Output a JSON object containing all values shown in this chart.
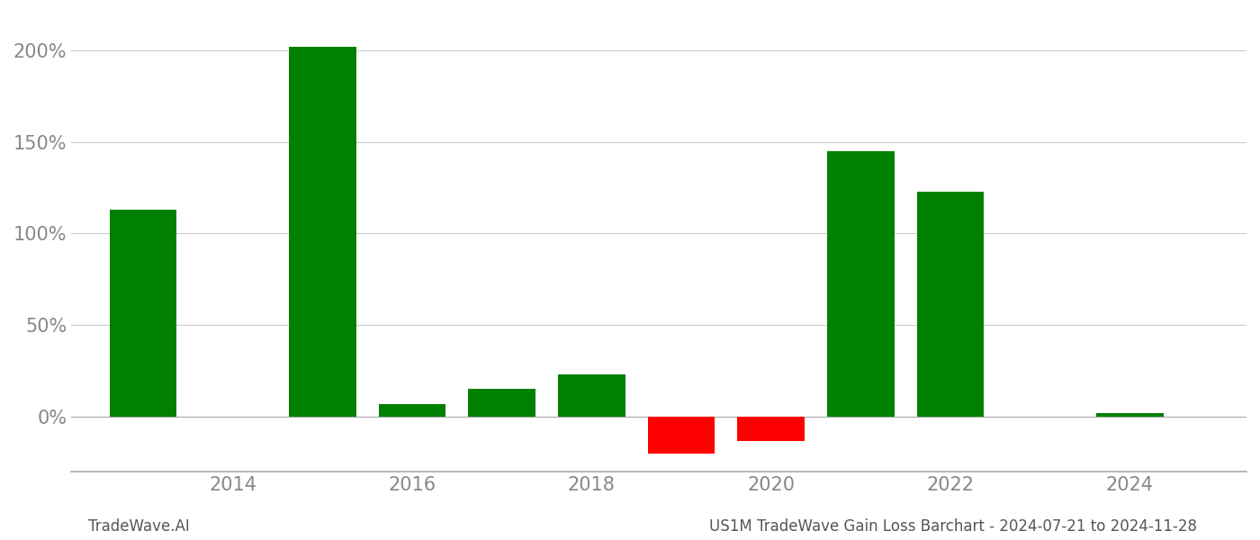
{
  "years": [
    2013,
    2015,
    2016,
    2017,
    2018,
    2019,
    2020,
    2021,
    2022,
    2024
  ],
  "values": [
    1.13,
    2.02,
    0.07,
    0.15,
    0.23,
    -0.2,
    -0.13,
    1.45,
    1.23,
    0.02
  ],
  "bar_colors_pos": "#008000",
  "bar_colors_neg": "#ff0000",
  "yticks": [
    0.0,
    0.5,
    1.0,
    1.5,
    2.0
  ],
  "ytick_labels": [
    "0%",
    "50%",
    "100%",
    "150%",
    "200%"
  ],
  "xtick_years": [
    2014,
    2016,
    2018,
    2020,
    2022,
    2024
  ],
  "ylim": [
    -0.3,
    2.2
  ],
  "xlim": [
    2012.2,
    2025.3
  ],
  "background_color": "#ffffff",
  "grid_color": "#cccccc",
  "footer_left": "TradeWave.AI",
  "footer_right": "US1M TradeWave Gain Loss Barchart - 2024-07-21 to 2024-11-28",
  "bar_width": 0.75,
  "tick_fontsize": 15,
  "footer_fontsize": 12
}
